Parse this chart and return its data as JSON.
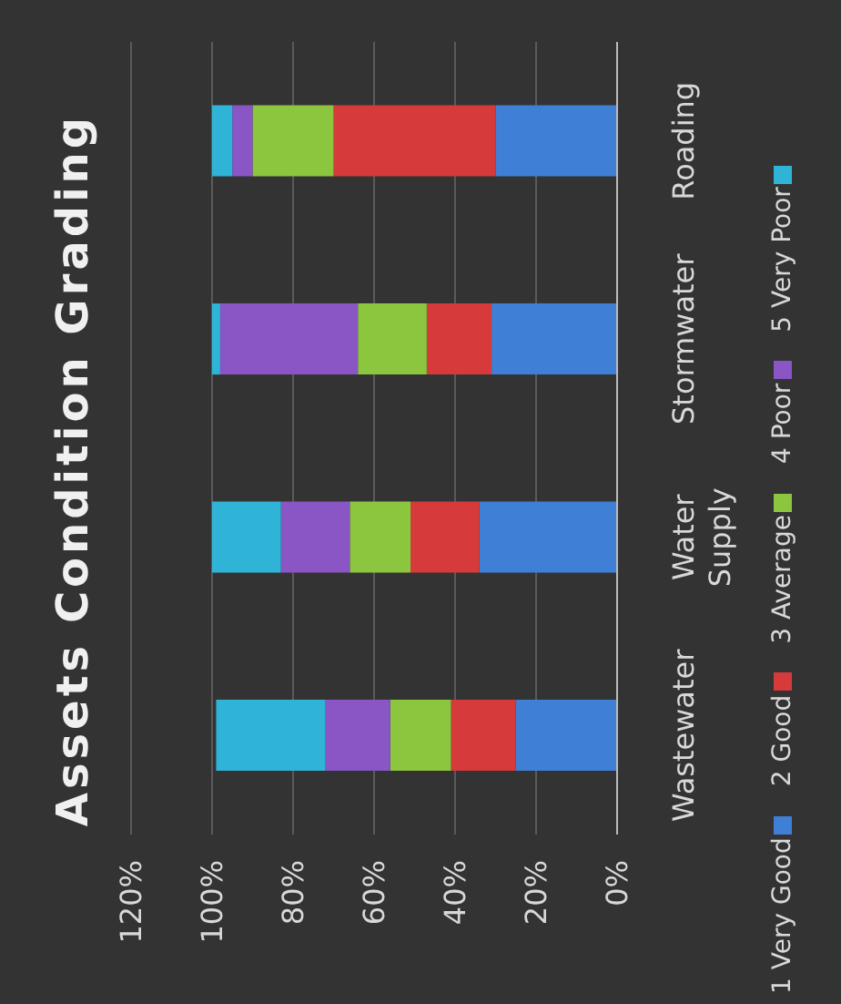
{
  "chart_data": {
    "type": "bar",
    "title": "Assets Condition Grading",
    "stacked": true,
    "orientation": "horizontal",
    "categories": [
      "Roading",
      "Stormwater",
      "Water Supply",
      "Wastewater"
    ],
    "series": [
      {
        "name": "1 Very Good",
        "color": "#3f7fd6",
        "values": [
          30,
          31,
          34,
          25
        ]
      },
      {
        "name": "2 Good",
        "color": "#d63a3a",
        "values": [
          40,
          16,
          17,
          16
        ]
      },
      {
        "name": "3 Average",
        "color": "#8cc63f",
        "values": [
          20,
          17,
          15,
          15
        ]
      },
      {
        "name": "4 Poor",
        "color": "#8a55c4",
        "values": [
          5,
          34,
          17,
          16
        ]
      },
      {
        "name": "5 Very Poor",
        "color": "#2fb4d8",
        "values": [
          5,
          2,
          17,
          27
        ]
      }
    ],
    "xlim": [
      120,
      0
    ],
    "xticks": [
      {
        "value": 120,
        "label": "120%"
      },
      {
        "value": 100,
        "label": "100%"
      },
      {
        "value": 80,
        "label": "80%"
      },
      {
        "value": 60,
        "label": "60%"
      },
      {
        "value": 40,
        "label": "40%"
      },
      {
        "value": 20,
        "label": "20%"
      },
      {
        "value": 0,
        "label": "0%"
      }
    ],
    "grid": "x",
    "legend": "right"
  }
}
